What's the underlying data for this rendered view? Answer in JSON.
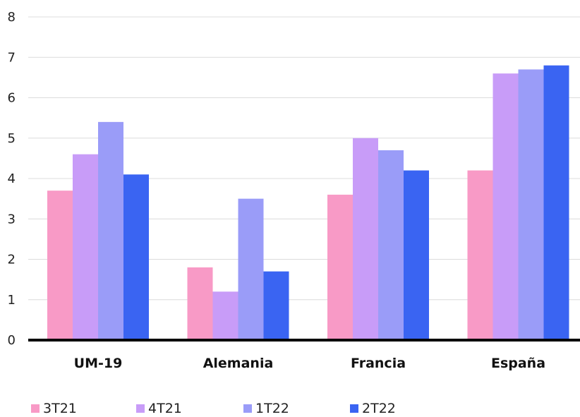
{
  "chart_data": {
    "type": "bar",
    "categories": [
      "UM-19",
      "Alemania",
      "Francia",
      "España"
    ],
    "series": [
      {
        "name": "3T21",
        "color": "#F89AC6",
        "values": [
          3.7,
          1.8,
          3.6,
          4.2
        ]
      },
      {
        "name": "4T21",
        "color": "#C89CF8",
        "values": [
          4.6,
          1.2,
          5.0,
          6.6
        ]
      },
      {
        "name": "1T22",
        "color": "#9A9CF8",
        "values": [
          5.4,
          3.5,
          4.7,
          6.7
        ]
      },
      {
        "name": "2T22",
        "color": "#3A64F2",
        "values": [
          4.1,
          1.7,
          4.2,
          6.8
        ]
      }
    ],
    "ylim": [
      0,
      8
    ],
    "yticks": [
      0,
      1,
      2,
      3,
      4,
      5,
      6,
      7,
      8
    ],
    "grid": true,
    "legend_position": "bottom-left",
    "title": "",
    "xlabel": "",
    "ylabel": ""
  }
}
